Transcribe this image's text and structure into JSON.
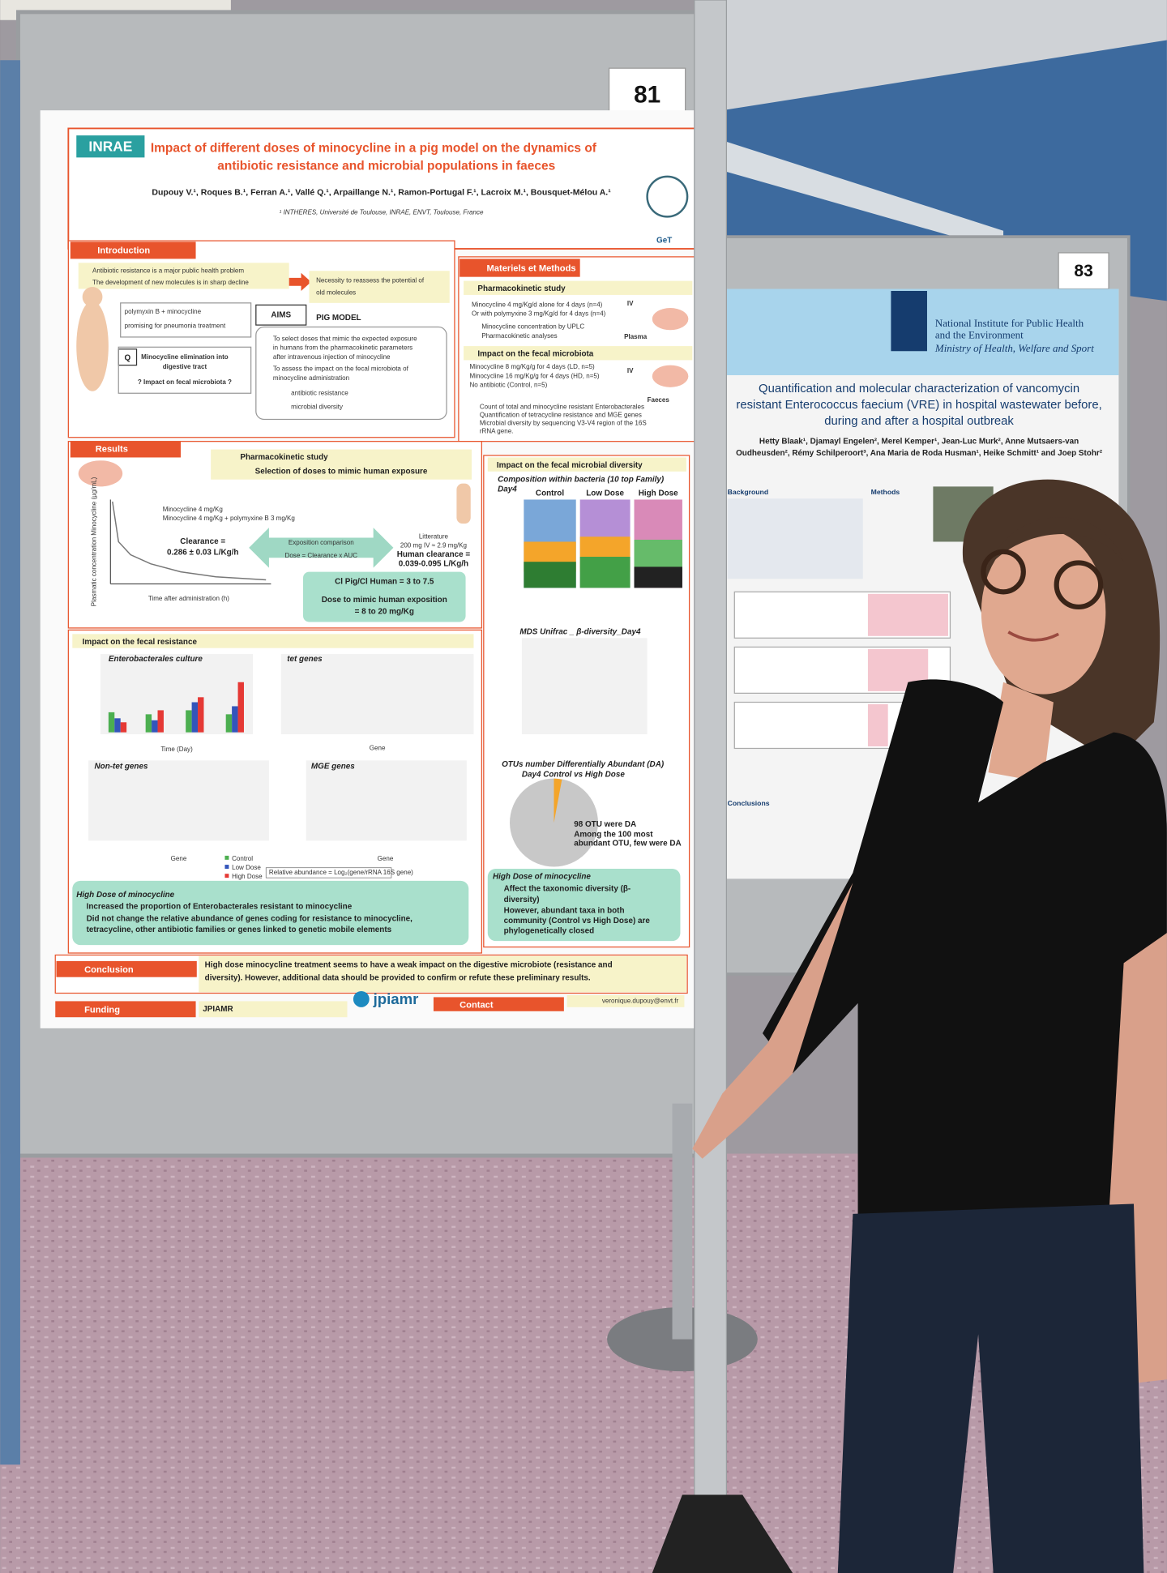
{
  "board_numbers": [
    "81",
    "83"
  ],
  "poster": {
    "logo": "INRAE",
    "title": [
      "Impact of different doses of minocycline in a pig model on the dynamics of",
      "antibiotic resistance and microbial populations in faeces"
    ],
    "authors": "Dupouy V.¹, Roques B.¹, Ferran A.¹, Vallé Q.¹, Arpaillange N.¹, Ramon-Portugal F.¹, Lacroix M.¹, Bousquet-Mélou A.¹",
    "affiliation": "¹ INTHERES, Université de Toulouse, INRAE, ENVT, Toulouse, France",
    "partner_logo": "GeT",
    "introduction": {
      "heading": "Introduction",
      "bullets": [
        "Antibiotic resistance is a major public health problem",
        "The development of new molecules is in sharp decline"
      ],
      "need": [
        "Necessity to reassess the potential of",
        "old molecules"
      ],
      "combo": [
        "polymyxin B + minocycline",
        "promising for pneumonia treatment"
      ],
      "q": "Q",
      "question": [
        "Minocycline elimination into",
        "digestive tract",
        "? Impact on fecal microbiota ?"
      ],
      "aims": "AIMS",
      "model": "PIG MODEL",
      "aims_items": [
        "To select doses that mimic the expected exposure",
        "in humans from the pharmacokinetic parameters",
        "after intravenous injection of minocycline",
        "To assess the impact on the fecal microbiota of",
        "minocycline administration",
        "antibiotic resistance",
        "microbial diversity"
      ]
    },
    "methods": {
      "heading": "Materiels et Methods",
      "pk_heading": "Pharmacokinetic study",
      "pk_lines": [
        "Minocycline 4 mg/Kg/d alone for 4 days (n=4)",
        "Or with polymyxine 3 mg/Kg/d for 4 days (n=4)",
        "Minocycline concentration by UPLC",
        "Pharmacokinetic analyses"
      ],
      "iv": "IV",
      "plasma": "Plasma",
      "fm_heading": "Impact on the fecal microbiota",
      "fm_lines": [
        "Minocycline 8 mg/Kg/g for 4 days (LD, n=5)",
        "Minocycline 16 mg/Kg/g for 4 days (HD, n=5)",
        "No antibiotic (Control, n=5)"
      ],
      "faeces": "Faeces",
      "analysis": [
        "Count of total and minocycline resistant Enterobacterales",
        "Quantification of tetracycline resistance and MGE genes",
        "Microbial diversity by sequencing V3-V4 region of the 16S",
        "rRNA gene."
      ]
    },
    "results": {
      "heading": "Results",
      "pk_title": [
        "Pharmacokinetic study",
        "Selection of doses to mimic human exposure"
      ],
      "legend": [
        "Minocycline 4 mg/Kg",
        "Minocycline 4 mg/Kg + polymyxine B 3 mg/Kg"
      ],
      "y_label": "Plasmatic concentration Minocycline (µg/mL)",
      "x_label": "Time after administration (h)",
      "clearance": [
        "Clearance =",
        "0.286 ± 0.03 L/Kg/h"
      ],
      "exposition": [
        "Exposition comparison",
        "Dose = Clearance x AUC"
      ],
      "litterature": [
        "Litterature",
        "200 mg IV ≈ 2.9 mg/Kg",
        "Human clearance =",
        "0.039-0.095 L/Kg/h"
      ],
      "ratio": "Cl Pig/Cl Human = 3 to 7.5",
      "dose": [
        "Dose to mimic human exposition",
        "= 8 to 20 mg/Kg"
      ]
    },
    "resistance": {
      "heading": "Impact on the fecal resistance",
      "panels": [
        "Enterobacterales culture",
        "tet genes",
        "Non-tet genes",
        "MGE genes"
      ],
      "x_labels": [
        "Time (Day)",
        "Gene"
      ],
      "groups": [
        "Control",
        "Low Dose",
        "High Dose"
      ],
      "formula": "Relative abundance = Log₂(gene/rRNA 16S gene)",
      "box_title": "High Dose of minocycline",
      "box_bullets": [
        "Increased the proportion of Enterobacterales resistant to minocycline",
        "Did not change the relative abundance of genes coding for resistance to minocycline,",
        "tetracycline, other antibiotic families or genes linked to genetic mobile elements"
      ]
    },
    "diversity": {
      "heading": "Impact on the fecal microbial diversity",
      "composition": [
        "Composition within bacteria (10 top Family)",
        "Day4"
      ],
      "groups": [
        "Control",
        "Low Dose",
        "High Dose"
      ],
      "mds": "MDS Unifrac _ β-diversity_Day4",
      "otu": [
        "OTUs number Differentially Abundant (DA)",
        "Day4 Control vs High Dose"
      ],
      "otu_note": [
        "98 OTU were DA",
        "Among the 100 most",
        "abundant OTU, few were DA"
      ],
      "box_title": "High Dose of minocycline",
      "box_bullets": [
        "Affect the taxonomic diversity (β-",
        "diversity)",
        "However, abundant taxa in both",
        "community (Control vs High Dose) are",
        "phylogenetically closed"
      ]
    },
    "conclusion": {
      "heading": "Conclusion",
      "text": [
        "High dose minocycline treatment seems to have a weak impact on the digestive microbiote (resistance and",
        "diversity). However, additional data should be provided to confirm or refute these preliminary results."
      ]
    },
    "funding": {
      "heading": "Funding",
      "value": "JPIAMR",
      "logo": "jpiamr"
    },
    "contact": {
      "heading": "Contact",
      "email": "veronique.dupouy@envt.fr"
    }
  },
  "right_poster": {
    "institute": [
      "National Institute for Public Health",
      "and the Environment",
      "Ministry of Health, Welfare and Sport"
    ],
    "title": [
      "Quantification and molecular characterization of vancomycin",
      "resistant Enterococcus faecium (VRE) in hospital wastewater before,",
      "during and after a hospital outbreak"
    ],
    "authors": [
      "Hetty Blaak¹, Djamayl Engelen², Merel Kemper¹, Jean-Luc Murk², Anne Mutsaers-van",
      "Oudheusden², Rémy Schilperoort³, Ana Maria de Roda Husman¹, Heike Schmitt¹ and Joep Stohr²"
    ],
    "sections": [
      "Background",
      "Methods",
      "Conclusions"
    ]
  }
}
